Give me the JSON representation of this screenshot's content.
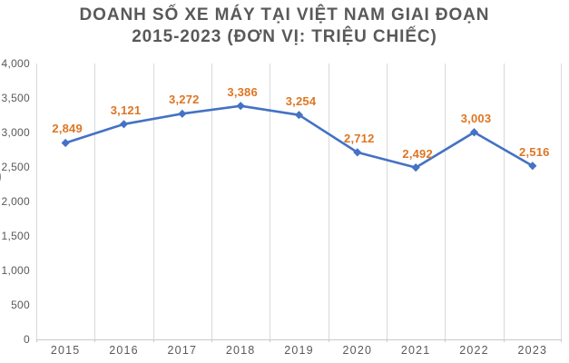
{
  "title": {
    "line1": "DOANH SỐ XE MÁY TẠI VIỆT NAM GIAI ĐOẠN",
    "line2": "2015-2023 (ĐƠN VỊ: TRIỆU CHIẾC)"
  },
  "misc": {
    "edge_fragment": ")"
  },
  "chart_data": {
    "type": "line",
    "title": "DOANH SỐ XE MÁY TẠI VIỆT NAM GIAI ĐOẠN 2015-2023 (ĐƠN VỊ: TRIỆU CHIẾC)",
    "categories": [
      "2015",
      "2016",
      "2017",
      "2018",
      "2019",
      "2020",
      "2021",
      "2022",
      "2023"
    ],
    "values": [
      2849,
      3121,
      3272,
      3386,
      3254,
      2712,
      2492,
      3003,
      2516
    ],
    "point_labels": [
      "2,849",
      "3,121",
      "3,272",
      "3,386",
      "3,254",
      "2,712",
      "2,492",
      "3,003",
      "2,516"
    ],
    "y_tick_labels": [
      "4,000",
      "3,500",
      "3,000",
      "2,500",
      "2,000",
      "1,500",
      "1,000",
      "500",
      "0"
    ],
    "y_ticks": [
      4000,
      3500,
      3000,
      2500,
      2000,
      1500,
      1000,
      500,
      0
    ],
    "ylim": [
      0,
      4000
    ],
    "xlabel": "",
    "ylabel": "",
    "grid": "vertical-only",
    "legend": "none",
    "marker": "diamond",
    "colors": {
      "line": "#4472C4",
      "marker": "#4472C4",
      "data_label": "#DD7623",
      "gridline": "#d9d9d9",
      "axis_line": "#c9c9c9",
      "axis_text": "#595959",
      "title_text": "#595959"
    }
  }
}
